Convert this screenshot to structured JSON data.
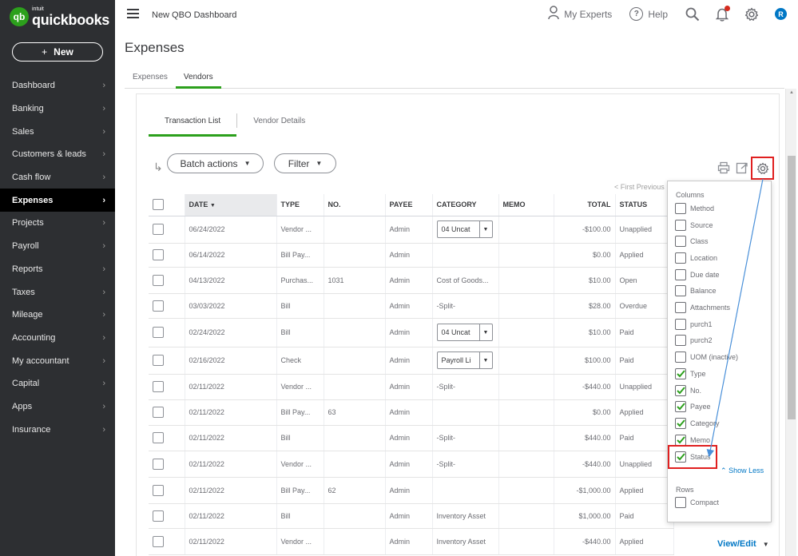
{
  "brand": {
    "intuit": "intuit",
    "name": "quickbooks",
    "badge": "qb"
  },
  "sidebar": {
    "new_label": "New",
    "items": [
      {
        "label": "Dashboard",
        "active": false
      },
      {
        "label": "Banking",
        "active": false
      },
      {
        "label": "Sales",
        "active": false
      },
      {
        "label": "Customers & leads",
        "active": false
      },
      {
        "label": "Cash flow",
        "active": false
      },
      {
        "label": "Expenses",
        "active": true
      },
      {
        "label": "Projects",
        "active": false
      },
      {
        "label": "Payroll",
        "active": false
      },
      {
        "label": "Reports",
        "active": false
      },
      {
        "label": "Taxes",
        "active": false
      },
      {
        "label": "Mileage",
        "active": false
      },
      {
        "label": "Accounting",
        "active": false
      },
      {
        "label": "My accountant",
        "active": false
      },
      {
        "label": "Capital",
        "active": false
      },
      {
        "label": "Apps",
        "active": false
      },
      {
        "label": "Insurance",
        "active": false
      }
    ]
  },
  "topbar": {
    "page_name": "New QBO Dashboard",
    "my_experts": "My Experts",
    "help": "Help",
    "avatar_initial": "R"
  },
  "page": {
    "title": "Expenses",
    "tabs": [
      "Expenses",
      "Vendors"
    ],
    "subtabs": [
      "Transaction List",
      "Vendor Details"
    ]
  },
  "toolbar": {
    "batch_actions": "Batch actions",
    "filter": "Filter",
    "pager": "< First   Previous"
  },
  "table": {
    "headers": [
      "DATE",
      "TYPE",
      "NO.",
      "PAYEE",
      "CATEGORY",
      "MEMO",
      "TOTAL",
      "STATUS"
    ],
    "rows": [
      {
        "date": "06/24/2022",
        "type": "Vendor ...",
        "no": "",
        "payee": "Admin",
        "category": "04 Uncat",
        "category_select": true,
        "memo": "",
        "total": "-$100.00",
        "status": "Unapplied",
        "status_color": "gray"
      },
      {
        "date": "06/14/2022",
        "type": "Bill Pay...",
        "no": "",
        "payee": "Admin",
        "category": "",
        "category_select": false,
        "memo": "",
        "total": "$0.00",
        "status": "Applied",
        "status_color": "green"
      },
      {
        "date": "04/13/2022",
        "type": "Purchas...",
        "no": "1031",
        "payee": "Admin",
        "category": "Cost of Goods...",
        "category_select": false,
        "memo": "",
        "total": "$10.00",
        "status": "Open",
        "status_color": "gray"
      },
      {
        "date": "03/03/2022",
        "type": "Bill",
        "no": "",
        "payee": "Admin",
        "category": "-Split-",
        "category_select": false,
        "memo": "",
        "total": "$28.00",
        "status": "Overdue",
        "status_color": "orange"
      },
      {
        "date": "02/24/2022",
        "type": "Bill",
        "no": "",
        "payee": "Admin",
        "category": "04 Uncat",
        "category_select": true,
        "memo": "",
        "total": "$10.00",
        "status": "Paid",
        "status_color": "green"
      },
      {
        "date": "02/16/2022",
        "type": "Check",
        "no": "",
        "payee": "Admin",
        "category": "Payroll Li",
        "category_select": true,
        "memo": "",
        "total": "$100.00",
        "status": "Paid",
        "status_color": "green"
      },
      {
        "date": "02/11/2022",
        "type": "Vendor ...",
        "no": "",
        "payee": "Admin",
        "category": "-Split-",
        "category_select": false,
        "memo": "",
        "total": "-$440.00",
        "status": "Unapplied",
        "status_color": "gray"
      },
      {
        "date": "02/11/2022",
        "type": "Bill Pay...",
        "no": "63",
        "payee": "Admin",
        "category": "",
        "category_select": false,
        "memo": "",
        "total": "$0.00",
        "status": "Applied",
        "status_color": "green"
      },
      {
        "date": "02/11/2022",
        "type": "Bill",
        "no": "",
        "payee": "Admin",
        "category": "-Split-",
        "category_select": false,
        "memo": "",
        "total": "$440.00",
        "status": "Paid",
        "status_color": "green"
      },
      {
        "date": "02/11/2022",
        "type": "Vendor ...",
        "no": "",
        "payee": "Admin",
        "category": "-Split-",
        "category_select": false,
        "memo": "",
        "total": "-$440.00",
        "status": "Unapplied",
        "status_color": "gray"
      },
      {
        "date": "02/11/2022",
        "type": "Bill Pay...",
        "no": "62",
        "payee": "Admin",
        "category": "",
        "category_select": false,
        "memo": "",
        "total": "-$1,000.00",
        "status": "Applied",
        "status_color": "green"
      },
      {
        "date": "02/11/2022",
        "type": "Bill",
        "no": "",
        "payee": "Admin",
        "category": "Inventory Asset",
        "category_select": false,
        "memo": "",
        "total": "$1,000.00",
        "status": "Paid",
        "status_color": "green"
      },
      {
        "date": "02/11/2022",
        "type": "Vendor ...",
        "no": "",
        "payee": "Admin",
        "category": "Inventory Asset",
        "category_select": false,
        "memo": "",
        "total": "-$440.00",
        "status": "Applied",
        "status_color": "green"
      }
    ],
    "view_edit": "View/Edit"
  },
  "column_settings": {
    "columns_heading": "Columns",
    "options": [
      {
        "label": "Method",
        "checked": false
      },
      {
        "label": "Source",
        "checked": false
      },
      {
        "label": "Class",
        "checked": false
      },
      {
        "label": "Location",
        "checked": false
      },
      {
        "label": "Due date",
        "checked": false
      },
      {
        "label": "Balance",
        "checked": false
      },
      {
        "label": "Attachments",
        "checked": false
      },
      {
        "label": "purch1",
        "checked": false
      },
      {
        "label": "purch2",
        "checked": false
      },
      {
        "label": "UOM (inactive)",
        "checked": false
      },
      {
        "label": "Type",
        "checked": true
      },
      {
        "label": "No.",
        "checked": true
      },
      {
        "label": "Payee",
        "checked": true
      },
      {
        "label": "Category",
        "checked": true
      },
      {
        "label": "Memo",
        "checked": true
      },
      {
        "label": "Status",
        "checked": true
      }
    ],
    "show_less": "Show Less",
    "rows_heading": "Rows",
    "rows_options": [
      {
        "label": "Compact",
        "checked": false
      }
    ]
  },
  "colors": {
    "accent_green": "#2ca01c",
    "link_blue": "#0077c5",
    "annotation_red": "#e02020",
    "overdue_orange": "#e25d00"
  }
}
